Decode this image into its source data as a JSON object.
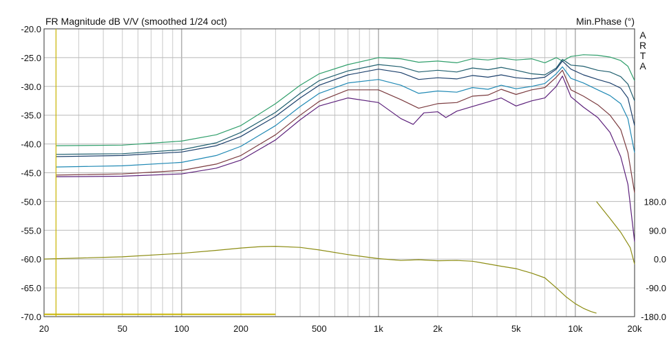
{
  "chart_data": {
    "type": "line",
    "title": "FR Magnitude dB V/V (smoothed 1/24 oct)",
    "right_label": "Min.Phase (°)",
    "brand": [
      "A",
      "R",
      "T",
      "A"
    ],
    "x_scale": "log",
    "xlim": [
      20,
      20000
    ],
    "x_ticks": [
      {
        "v": 20,
        "label": "20"
      },
      {
        "v": 50,
        "label": "50"
      },
      {
        "v": 100,
        "label": "100"
      },
      {
        "v": 200,
        "label": "200"
      },
      {
        "v": 500,
        "label": "500"
      },
      {
        "v": 1000,
        "label": "1k"
      },
      {
        "v": 2000,
        "label": "2k"
      },
      {
        "v": 5000,
        "label": "5k"
      },
      {
        "v": 10000,
        "label": "10k"
      },
      {
        "v": 20000,
        "label": "20k"
      }
    ],
    "ylim": [
      -70,
      -20
    ],
    "y_ticks": [
      "-20.0",
      "-25.0",
      "-30.0",
      "-35.0",
      "-40.0",
      "-45.0",
      "-50.0",
      "-55.0",
      "-60.0",
      "-65.0",
      "-70.0"
    ],
    "phase_lim": [
      -180,
      180
    ],
    "phase_ticks": [
      "180.0",
      "90.0",
      "0.0",
      "-90.0",
      "-180.0"
    ],
    "grid": true,
    "series": [
      {
        "color": "#2e9e6a",
        "points": [
          [
            23,
            -40.3
          ],
          [
            50,
            -40.2
          ],
          [
            100,
            -39.5
          ],
          [
            150,
            -38.4
          ],
          [
            200,
            -36.8
          ],
          [
            300,
            -33.0
          ],
          [
            400,
            -29.8
          ],
          [
            500,
            -27.8
          ],
          [
            700,
            -26.2
          ],
          [
            1000,
            -25.0
          ],
          [
            1300,
            -25.2
          ],
          [
            1600,
            -25.8
          ],
          [
            2000,
            -25.6
          ],
          [
            2500,
            -25.9
          ],
          [
            3000,
            -25.2
          ],
          [
            3600,
            -25.4
          ],
          [
            4200,
            -25.1
          ],
          [
            5000,
            -25.4
          ],
          [
            6000,
            -25.2
          ],
          [
            7000,
            -25.9
          ],
          [
            8000,
            -25.0
          ],
          [
            8600,
            -25.6
          ],
          [
            9500,
            -24.8
          ],
          [
            11000,
            -24.5
          ],
          [
            13000,
            -24.6
          ],
          [
            15000,
            -24.9
          ],
          [
            17000,
            -25.5
          ],
          [
            18500,
            -26.5
          ],
          [
            20000,
            -29.0
          ]
        ]
      },
      {
        "color": "#1f5e6e",
        "points": [
          [
            23,
            -41.8
          ],
          [
            50,
            -41.7
          ],
          [
            100,
            -41.0
          ],
          [
            150,
            -39.8
          ],
          [
            200,
            -38.0
          ],
          [
            300,
            -34.5
          ],
          [
            400,
            -31.2
          ],
          [
            500,
            -29.0
          ],
          [
            700,
            -27.3
          ],
          [
            1000,
            -26.2
          ],
          [
            1300,
            -26.6
          ],
          [
            1600,
            -27.5
          ],
          [
            2000,
            -27.2
          ],
          [
            2500,
            -27.5
          ],
          [
            3000,
            -26.8
          ],
          [
            3600,
            -27.1
          ],
          [
            4200,
            -26.7
          ],
          [
            5000,
            -27.2
          ],
          [
            6000,
            -27.8
          ],
          [
            7000,
            -28.0
          ],
          [
            8000,
            -26.8
          ],
          [
            8600,
            -25.3
          ],
          [
            9500,
            -26.3
          ],
          [
            11000,
            -26.5
          ],
          [
            13000,
            -27.2
          ],
          [
            15000,
            -27.5
          ],
          [
            17000,
            -28.3
          ],
          [
            18500,
            -29.6
          ],
          [
            20000,
            -32.5
          ]
        ]
      },
      {
        "color": "#1b3f6b",
        "points": [
          [
            23,
            -42.2
          ],
          [
            50,
            -42.0
          ],
          [
            100,
            -41.4
          ],
          [
            150,
            -40.3
          ],
          [
            200,
            -38.7
          ],
          [
            300,
            -35.2
          ],
          [
            400,
            -32.0
          ],
          [
            500,
            -29.8
          ],
          [
            700,
            -28.0
          ],
          [
            1000,
            -27.0
          ],
          [
            1300,
            -27.6
          ],
          [
            1600,
            -28.8
          ],
          [
            2000,
            -28.5
          ],
          [
            2500,
            -28.7
          ],
          [
            3000,
            -28.1
          ],
          [
            3600,
            -28.4
          ],
          [
            4200,
            -28.0
          ],
          [
            5000,
            -28.5
          ],
          [
            6000,
            -28.7
          ],
          [
            7000,
            -28.4
          ],
          [
            8000,
            -27.0
          ],
          [
            8600,
            -25.6
          ],
          [
            9500,
            -27.0
          ],
          [
            11000,
            -28.0
          ],
          [
            13000,
            -28.8
          ],
          [
            15000,
            -29.4
          ],
          [
            17000,
            -30.3
          ],
          [
            18500,
            -32.0
          ],
          [
            20000,
            -36.8
          ]
        ]
      },
      {
        "color": "#1e88b4",
        "points": [
          [
            23,
            -44.0
          ],
          [
            50,
            -43.8
          ],
          [
            100,
            -43.2
          ],
          [
            150,
            -42.0
          ],
          [
            200,
            -40.4
          ],
          [
            300,
            -36.8
          ],
          [
            400,
            -33.5
          ],
          [
            500,
            -31.2
          ],
          [
            700,
            -29.4
          ],
          [
            1000,
            -28.8
          ],
          [
            1300,
            -29.8
          ],
          [
            1600,
            -31.2
          ],
          [
            2000,
            -30.8
          ],
          [
            2500,
            -31.0
          ],
          [
            3000,
            -30.2
          ],
          [
            3600,
            -30.5
          ],
          [
            4200,
            -29.8
          ],
          [
            5000,
            -30.4
          ],
          [
            6000,
            -30.0
          ],
          [
            7000,
            -29.5
          ],
          [
            8000,
            -27.8
          ],
          [
            8600,
            -26.6
          ],
          [
            9500,
            -28.6
          ],
          [
            11000,
            -29.4
          ],
          [
            13000,
            -30.6
          ],
          [
            15000,
            -31.6
          ],
          [
            17000,
            -33.0
          ],
          [
            18500,
            -35.6
          ],
          [
            20000,
            -41.5
          ]
        ]
      },
      {
        "color": "#7a3a3e",
        "points": [
          [
            23,
            -45.4
          ],
          [
            50,
            -45.2
          ],
          [
            100,
            -44.6
          ],
          [
            150,
            -43.5
          ],
          [
            200,
            -42.0
          ],
          [
            300,
            -38.4
          ],
          [
            400,
            -35.0
          ],
          [
            500,
            -32.6
          ],
          [
            700,
            -30.6
          ],
          [
            1000,
            -30.6
          ],
          [
            1300,
            -32.3
          ],
          [
            1600,
            -33.8
          ],
          [
            2000,
            -33.0
          ],
          [
            2500,
            -32.8
          ],
          [
            3000,
            -31.7
          ],
          [
            3600,
            -31.5
          ],
          [
            4200,
            -30.5
          ],
          [
            5000,
            -31.4
          ],
          [
            6000,
            -30.6
          ],
          [
            7000,
            -30.2
          ],
          [
            8000,
            -28.4
          ],
          [
            8600,
            -27.2
          ],
          [
            9500,
            -30.6
          ],
          [
            11000,
            -31.7
          ],
          [
            13000,
            -33.2
          ],
          [
            15000,
            -35.0
          ],
          [
            17000,
            -37.5
          ],
          [
            18500,
            -41.5
          ],
          [
            20000,
            -48.5
          ]
        ]
      },
      {
        "color": "#5b1f7a",
        "points": [
          [
            23,
            -45.7
          ],
          [
            50,
            -45.6
          ],
          [
            100,
            -45.2
          ],
          [
            150,
            -44.2
          ],
          [
            200,
            -42.8
          ],
          [
            300,
            -39.3
          ],
          [
            400,
            -35.8
          ],
          [
            500,
            -33.4
          ],
          [
            700,
            -32.0
          ],
          [
            1000,
            -32.8
          ],
          [
            1300,
            -35.6
          ],
          [
            1500,
            -36.6
          ],
          [
            1700,
            -34.6
          ],
          [
            2000,
            -34.4
          ],
          [
            2200,
            -35.4
          ],
          [
            2500,
            -34.3
          ],
          [
            3000,
            -33.5
          ],
          [
            3600,
            -32.7
          ],
          [
            4200,
            -32.0
          ],
          [
            5000,
            -33.4
          ],
          [
            6000,
            -32.5
          ],
          [
            7000,
            -32.0
          ],
          [
            8000,
            -30.0
          ],
          [
            8600,
            -28.2
          ],
          [
            9500,
            -31.8
          ],
          [
            11000,
            -33.6
          ],
          [
            13000,
            -35.4
          ],
          [
            15000,
            -38.0
          ],
          [
            17000,
            -42.2
          ],
          [
            18500,
            -47.0
          ],
          [
            20000,
            -57.0
          ]
        ]
      },
      {
        "name": "Min.Phase",
        "axis": "phase",
        "color": "#8c8c12",
        "points": [
          [
            20,
            0.2
          ],
          [
            50,
            7.0
          ],
          [
            100,
            18.0
          ],
          [
            150,
            27.2
          ],
          [
            200,
            34.5
          ],
          [
            250,
            38.8
          ],
          [
            300,
            40.0
          ],
          [
            400,
            36.5
          ],
          [
            500,
            28.5
          ],
          [
            700,
            14.0
          ],
          [
            1000,
            1.5
          ],
          [
            1300,
            -4.2
          ],
          [
            1600,
            -2.0
          ],
          [
            2000,
            -5.2
          ],
          [
            2500,
            -4.2
          ],
          [
            3000,
            -6.6
          ],
          [
            3500,
            -13.7
          ],
          [
            4200,
            -22.3
          ],
          [
            5000,
            -29.8
          ],
          [
            6000,
            -44.0
          ],
          [
            7000,
            -58.6
          ],
          [
            8000,
            -89.5
          ],
          [
            9000,
            -118.5
          ],
          [
            10000,
            -139.7
          ],
          [
            11000,
            -154.1
          ],
          [
            12000,
            -164.2
          ],
          [
            12800,
            -169.0
          ]
        ]
      },
      {
        "name": "Min.Phase",
        "axis": "phase",
        "color": "#8c8c12",
        "points": [
          [
            12800,
            180.0
          ],
          [
            13500,
            162.0
          ],
          [
            15000,
            127.0
          ],
          [
            17000,
            84.0
          ],
          [
            19000,
            36.0
          ],
          [
            20000,
            -16.0
          ]
        ]
      }
    ],
    "markers": [
      {
        "color": "#c8b400",
        "kind": "vertical",
        "x": 23
      },
      {
        "color": "#c8b400",
        "kind": "horizontal",
        "y": -69.6,
        "x_from": 20,
        "x_to": 300
      }
    ]
  }
}
